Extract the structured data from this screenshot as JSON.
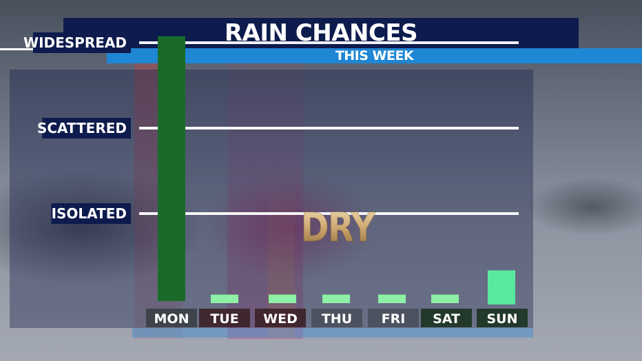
{
  "header": {
    "title": "RAIN CHANCES",
    "subtitle": "THIS WEEK"
  },
  "annotation": "DRY",
  "colors": {
    "title_bg": "#0d1b4d",
    "subtitle_bg": "#1f86d4",
    "bar_mon": "#1a6b2a",
    "bar_light": "#8ef0a6",
    "bar_sun": "#5ae8a0",
    "grid_line": "#ffffff"
  },
  "chart_data": {
    "type": "bar",
    "title": "RAIN CHANCES",
    "subtitle": "THIS WEEK",
    "categories": [
      "MON",
      "TUE",
      "WED",
      "THU",
      "FRI",
      "SAT",
      "SUN"
    ],
    "values": [
      3.1,
      0.1,
      0.1,
      0.1,
      0.1,
      0.1,
      0.4
    ],
    "y_levels": [
      {
        "label": "ISOLATED",
        "value": 1
      },
      {
        "label": "SCATTERED",
        "value": 2
      },
      {
        "label": "WIDESPREAD",
        "value": 3
      }
    ],
    "ylim": [
      0,
      3.1
    ],
    "grid": true
  }
}
